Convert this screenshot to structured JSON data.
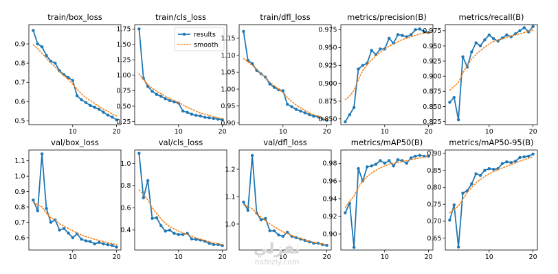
{
  "figure": {
    "line_color": "#1f77b4",
    "smooth_color": "#ff7f0e",
    "legend": {
      "results": "results",
      "smooth": "smooth",
      "placement": "upper-right",
      "panel": 1
    }
  },
  "watermark": {
    "logo_text": "نفزلي",
    "url": "nafezly.com"
  },
  "chart_data": [
    {
      "type": "line",
      "title": "train/box_loss",
      "xlim": [
        0,
        21
      ],
      "ylim": [
        0.48,
        1.0
      ],
      "xticks": [
        10,
        20
      ],
      "yticks": [
        0.5,
        0.6,
        0.7,
        0.8,
        0.9
      ],
      "x": [
        1,
        2,
        3,
        4,
        5,
        6,
        7,
        8,
        9,
        10,
        11,
        12,
        13,
        14,
        15,
        16,
        17,
        18,
        19,
        20
      ],
      "series": [
        {
          "name": "results",
          "style": "solid-markers",
          "values": [
            0.97,
            0.9,
            0.885,
            0.84,
            0.81,
            0.8,
            0.76,
            0.74,
            0.725,
            0.71,
            0.63,
            0.61,
            0.595,
            0.58,
            0.57,
            0.56,
            0.545,
            0.53,
            0.52,
            0.505
          ]
        },
        {
          "name": "smooth",
          "style": "dotted",
          "values": [
            0.895,
            0.875,
            0.85,
            0.825,
            0.8,
            0.78,
            0.755,
            0.735,
            0.715,
            0.69,
            0.665,
            0.64,
            0.62,
            0.605,
            0.59,
            0.575,
            0.56,
            0.55,
            0.535,
            0.525
          ]
        }
      ]
    },
    {
      "type": "line",
      "title": "train/cls_loss",
      "xlim": [
        0,
        21
      ],
      "ylim": [
        0.2,
        1.82
      ],
      "xticks": [
        10,
        20
      ],
      "yticks": [
        0.25,
        0.5,
        0.75,
        1.0,
        1.25,
        1.5,
        1.75
      ],
      "x": [
        1,
        2,
        3,
        4,
        5,
        6,
        7,
        8,
        9,
        10,
        11,
        12,
        13,
        14,
        15,
        16,
        17,
        18,
        19,
        20
      ],
      "series": [
        {
          "name": "results",
          "style": "solid-markers",
          "values": [
            1.75,
            0.95,
            0.82,
            0.74,
            0.69,
            0.66,
            0.62,
            0.59,
            0.57,
            0.55,
            0.42,
            0.4,
            0.37,
            0.35,
            0.34,
            0.32,
            0.31,
            0.3,
            0.29,
            0.28
          ]
        },
        {
          "name": "smooth",
          "style": "dotted",
          "values": [
            1.02,
            0.93,
            0.85,
            0.79,
            0.74,
            0.7,
            0.66,
            0.62,
            0.59,
            0.56,
            0.52,
            0.48,
            0.45,
            0.42,
            0.39,
            0.37,
            0.35,
            0.33,
            0.31,
            0.3
          ]
        }
      ]
    },
    {
      "type": "line",
      "title": "train/dfl_loss",
      "xlim": [
        0,
        21
      ],
      "ylim": [
        0.895,
        1.19
      ],
      "xticks": [
        10,
        20
      ],
      "yticks": [
        0.9,
        0.95,
        1.0,
        1.05,
        1.1,
        1.15
      ],
      "x": [
        1,
        2,
        3,
        4,
        5,
        6,
        7,
        8,
        9,
        10,
        11,
        12,
        13,
        14,
        15,
        16,
        17,
        18,
        19,
        20
      ],
      "series": [
        {
          "name": "results",
          "style": "solid-markers",
          "values": [
            1.17,
            1.085,
            1.075,
            1.055,
            1.045,
            1.035,
            1.015,
            1.005,
            0.998,
            0.995,
            0.955,
            0.948,
            0.94,
            0.935,
            0.93,
            0.925,
            0.92,
            0.918,
            0.912,
            0.908
          ]
        },
        {
          "name": "smooth",
          "style": "dotted",
          "values": [
            1.09,
            1.08,
            1.07,
            1.06,
            1.045,
            1.035,
            1.02,
            1.01,
            1.0,
            0.99,
            0.975,
            0.963,
            0.953,
            0.945,
            0.937,
            0.93,
            0.924,
            0.919,
            0.914,
            0.91
          ]
        }
      ]
    },
    {
      "type": "line",
      "title": "metrics/precision(B)",
      "xlim": [
        0,
        21
      ],
      "ylim": [
        0.842,
        0.982
      ],
      "xticks": [
        10,
        20
      ],
      "yticks": [
        0.85,
        0.875,
        0.9,
        0.925,
        0.95,
        0.975
      ],
      "x": [
        1,
        2,
        3,
        4,
        5,
        6,
        7,
        8,
        9,
        10,
        11,
        12,
        13,
        14,
        15,
        16,
        17,
        18,
        19,
        20
      ],
      "series": [
        {
          "name": "results",
          "style": "solid-markers",
          "values": [
            0.846,
            0.856,
            0.866,
            0.92,
            0.925,
            0.928,
            0.946,
            0.94,
            0.948,
            0.948,
            0.963,
            0.956,
            0.968,
            0.967,
            0.965,
            0.968,
            0.975,
            0.976,
            0.972,
            0.971
          ]
        },
        {
          "name": "smooth",
          "style": "dotted",
          "values": [
            0.877,
            0.882,
            0.89,
            0.905,
            0.918,
            0.926,
            0.933,
            0.938,
            0.943,
            0.948,
            0.952,
            0.955,
            0.958,
            0.961,
            0.963,
            0.965,
            0.967,
            0.969,
            0.97,
            0.971
          ]
        }
      ]
    },
    {
      "type": "line",
      "title": "metrics/recall(B)",
      "xlim": [
        0,
        21
      ],
      "ylim": [
        0.82,
        0.985
      ],
      "xticks": [
        10,
        20
      ],
      "yticks": [
        0.825,
        0.85,
        0.875,
        0.9,
        0.925,
        0.95,
        0.975
      ],
      "x": [
        1,
        2,
        3,
        4,
        5,
        6,
        7,
        8,
        9,
        10,
        11,
        12,
        13,
        14,
        15,
        16,
        17,
        18,
        19,
        20
      ],
      "series": [
        {
          "name": "results",
          "style": "solid-markers",
          "values": [
            0.857,
            0.865,
            0.828,
            0.932,
            0.915,
            0.94,
            0.955,
            0.95,
            0.96,
            0.968,
            0.962,
            0.958,
            0.963,
            0.968,
            0.965,
            0.97,
            0.975,
            0.98,
            0.973,
            0.982
          ]
        },
        {
          "name": "smooth",
          "style": "dotted",
          "values": [
            0.877,
            0.883,
            0.89,
            0.905,
            0.918,
            0.928,
            0.936,
            0.942,
            0.948,
            0.953,
            0.957,
            0.96,
            0.962,
            0.964,
            0.966,
            0.968,
            0.97,
            0.972,
            0.974,
            0.976
          ]
        }
      ]
    },
    {
      "type": "line",
      "title": "val/box_loss",
      "xlim": [
        0,
        21
      ],
      "ylim": [
        0.52,
        1.17
      ],
      "xticks": [
        10,
        20
      ],
      "yticks": [
        0.6,
        0.7,
        0.8,
        0.9,
        1.0,
        1.1
      ],
      "x": [
        1,
        2,
        3,
        4,
        5,
        6,
        7,
        8,
        9,
        10,
        11,
        12,
        13,
        14,
        15,
        16,
        17,
        18,
        19,
        20
      ],
      "series": [
        {
          "name": "results",
          "style": "solid-markers",
          "values": [
            0.845,
            0.775,
            1.145,
            0.79,
            0.7,
            0.715,
            0.65,
            0.66,
            0.63,
            0.6,
            0.625,
            0.59,
            0.58,
            0.575,
            0.56,
            0.57,
            0.56,
            0.555,
            0.55,
            0.54
          ]
        },
        {
          "name": "smooth",
          "style": "dotted",
          "values": [
            0.83,
            0.815,
            0.8,
            0.76,
            0.73,
            0.715,
            0.69,
            0.675,
            0.66,
            0.645,
            0.63,
            0.618,
            0.607,
            0.598,
            0.59,
            0.582,
            0.575,
            0.568,
            0.562,
            0.556
          ]
        }
      ]
    },
    {
      "type": "line",
      "title": "val/cls_loss",
      "xlim": [
        0,
        21
      ],
      "ylim": [
        0.22,
        1.12
      ],
      "xticks": [
        10,
        20
      ],
      "yticks": [
        0.4,
        0.6,
        0.8,
        1.0
      ],
      "x": [
        1,
        2,
        3,
        4,
        5,
        6,
        7,
        8,
        9,
        10,
        11,
        12,
        13,
        14,
        15,
        16,
        17,
        18,
        19,
        20
      ],
      "series": [
        {
          "name": "results",
          "style": "solid-markers",
          "values": [
            1.09,
            0.69,
            0.845,
            0.505,
            0.51,
            0.44,
            0.39,
            0.4,
            0.37,
            0.36,
            0.36,
            0.37,
            0.32,
            0.315,
            0.31,
            0.3,
            0.28,
            0.27,
            0.27,
            0.26
          ]
        },
        {
          "name": "smooth",
          "style": "dotted",
          "values": [
            0.76,
            0.72,
            0.67,
            0.6,
            0.55,
            0.5,
            0.46,
            0.43,
            0.41,
            0.39,
            0.375,
            0.36,
            0.345,
            0.33,
            0.318,
            0.305,
            0.295,
            0.285,
            0.275,
            0.27
          ]
        }
      ]
    },
    {
      "type": "line",
      "title": "val/dfl_loss",
      "xlim": [
        0,
        21
      ],
      "ylim": [
        0.905,
        1.27
      ],
      "xticks": [
        10,
        20
      ],
      "yticks": [
        1.0,
        1.1,
        1.2
      ],
      "x": [
        1,
        2,
        3,
        4,
        5,
        6,
        7,
        8,
        9,
        10,
        11,
        12,
        13,
        14,
        15,
        16,
        17,
        18,
        19,
        20
      ],
      "series": [
        {
          "name": "results",
          "style": "solid-markers",
          "values": [
            1.08,
            1.05,
            1.25,
            1.04,
            1.015,
            1.02,
            0.975,
            0.975,
            0.96,
            0.955,
            0.97,
            0.955,
            0.95,
            0.945,
            0.94,
            0.935,
            0.93,
            0.93,
            0.925,
            0.922
          ]
        },
        {
          "name": "smooth",
          "style": "dotted",
          "values": [
            1.07,
            1.063,
            1.055,
            1.04,
            1.025,
            1.012,
            1.0,
            0.99,
            0.98,
            0.972,
            0.965,
            0.958,
            0.952,
            0.947,
            0.942,
            0.937,
            0.933,
            0.93,
            0.927,
            0.925
          ]
        }
      ]
    },
    {
      "type": "line",
      "title": "metrics/mAP50(B)",
      "xlim": [
        0,
        21
      ],
      "ylim": [
        0.882,
        0.995
      ],
      "xticks": [
        10,
        20
      ],
      "yticks": [
        0.9,
        0.92,
        0.94,
        0.96,
        0.98
      ],
      "x": [
        1,
        2,
        3,
        4,
        5,
        6,
        7,
        8,
        9,
        10,
        11,
        12,
        13,
        14,
        15,
        16,
        17,
        18,
        19,
        20
      ],
      "series": [
        {
          "name": "results",
          "style": "solid-markers",
          "values": [
            0.924,
            0.935,
            0.885,
            0.974,
            0.96,
            0.976,
            0.977,
            0.979,
            0.983,
            0.98,
            0.983,
            0.977,
            0.984,
            0.983,
            0.98,
            0.986,
            0.988,
            0.989,
            0.988,
            0.988
          ]
        },
        {
          "name": "smooth",
          "style": "dotted",
          "values": [
            0.93,
            0.937,
            0.943,
            0.953,
            0.96,
            0.965,
            0.969,
            0.972,
            0.975,
            0.977,
            0.979,
            0.98,
            0.981,
            0.982,
            0.983,
            0.984,
            0.985,
            0.986,
            0.987,
            0.988
          ]
        }
      ]
    },
    {
      "type": "line",
      "title": "metrics/mAP50-95(B)",
      "xlim": [
        0,
        21
      ],
      "ylim": [
        0.615,
        0.91
      ],
      "xticks": [
        10,
        20
      ],
      "yticks": [
        0.65,
        0.7,
        0.75,
        0.8,
        0.85,
        0.9
      ],
      "x": [
        1,
        2,
        3,
        4,
        5,
        6,
        7,
        8,
        9,
        10,
        11,
        12,
        13,
        14,
        15,
        16,
        17,
        18,
        19,
        20
      ],
      "series": [
        {
          "name": "results",
          "style": "solid-markers",
          "values": [
            0.703,
            0.748,
            0.624,
            0.783,
            0.79,
            0.81,
            0.84,
            0.835,
            0.85,
            0.855,
            0.853,
            0.855,
            0.87,
            0.875,
            0.873,
            0.877,
            0.888,
            0.89,
            0.892,
            0.898
          ]
        },
        {
          "name": "smooth",
          "style": "dotted",
          "values": [
            0.725,
            0.735,
            0.745,
            0.765,
            0.785,
            0.8,
            0.813,
            0.823,
            0.832,
            0.84,
            0.846,
            0.852,
            0.857,
            0.862,
            0.867,
            0.872,
            0.877,
            0.882,
            0.886,
            0.89
          ]
        }
      ]
    }
  ]
}
